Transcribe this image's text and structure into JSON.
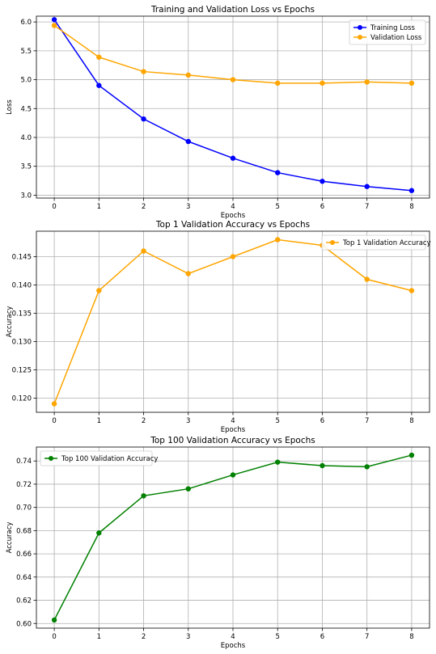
{
  "chart_data": [
    {
      "type": "line",
      "title": "Training and Validation Loss vs Epochs",
      "xlabel": "Epochs",
      "ylabel": "Loss",
      "x": [
        0,
        1,
        2,
        3,
        4,
        5,
        6,
        7,
        8
      ],
      "xlim": [
        -0.4,
        8.4
      ],
      "ylim": [
        2.95,
        6.1
      ],
      "yticks": [
        3.0,
        3.5,
        4.0,
        4.5,
        5.0,
        5.5,
        6.0
      ],
      "ytick_decimals": 1,
      "grid": true,
      "legend": "top-right",
      "series": [
        {
          "name": "Training Loss",
          "color": "#0000ff",
          "values": [
            6.04,
            4.9,
            4.32,
            3.93,
            3.64,
            3.39,
            3.24,
            3.15,
            3.08
          ]
        },
        {
          "name": "Validation Loss",
          "color": "#ffa500",
          "values": [
            5.94,
            5.39,
            5.14,
            5.08,
            5.0,
            4.94,
            4.94,
            4.96,
            4.94
          ]
        }
      ]
    },
    {
      "type": "line",
      "title": "Top 1 Validation Accuracy vs Epochs",
      "xlabel": "Epochs",
      "ylabel": "Accuracy",
      "x": [
        0,
        1,
        2,
        3,
        4,
        5,
        6,
        7,
        8
      ],
      "xlim": [
        -0.4,
        8.4
      ],
      "ylim": [
        0.1175,
        0.1495
      ],
      "yticks": [
        0.12,
        0.125,
        0.13,
        0.135,
        0.14,
        0.145
      ],
      "ytick_decimals": 3,
      "grid": true,
      "legend": "top-right",
      "series": [
        {
          "name": "Top 1 Validation Accuracy",
          "color": "#ffa500",
          "values": [
            0.119,
            0.139,
            0.146,
            0.142,
            0.145,
            0.148,
            0.147,
            0.141,
            0.139
          ]
        }
      ]
    },
    {
      "type": "line",
      "title": "Top 100 Validation Accuracy vs Epochs",
      "xlabel": "Epochs",
      "ylabel": "Accuracy",
      "x": [
        0,
        1,
        2,
        3,
        4,
        5,
        6,
        7,
        8
      ],
      "xlim": [
        -0.4,
        8.4
      ],
      "ylim": [
        0.596,
        0.752
      ],
      "yticks": [
        0.6,
        0.62,
        0.64,
        0.66,
        0.68,
        0.7,
        0.72,
        0.74
      ],
      "ytick_decimals": 2,
      "grid": true,
      "legend": "top-left",
      "series": [
        {
          "name": "Top 100 Validation Accuracy",
          "color": "#008000",
          "values": [
            0.603,
            0.678,
            0.71,
            0.716,
            0.728,
            0.739,
            0.736,
            0.735,
            0.745
          ]
        }
      ]
    }
  ]
}
